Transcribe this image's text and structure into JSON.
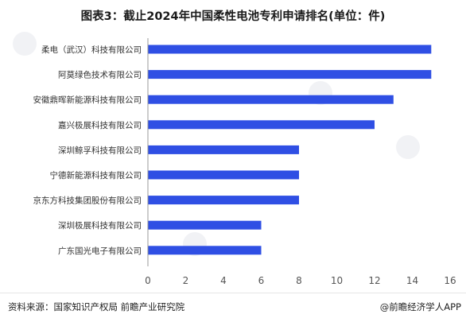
{
  "title": "图表3：截止2024年中国柔性电池专利申请排名(单位：件)",
  "footer": {
    "source": "资料来源：国家知识产权局 前瞻产业研究院",
    "brand": "@前瞻经济学人APP"
  },
  "colors": {
    "bar": "#2F4FE4",
    "axis": "#999999",
    "background": "#ffffff"
  },
  "chart_data": {
    "type": "bar",
    "orientation": "horizontal",
    "title": "图表3：截止2024年中国柔性电池专利申请排名(单位：件)",
    "categories": [
      "柔电（武汉）科技有限公司",
      "阿莫绿色技术有限公司",
      "安徽鼎晖新能源科技有限公司",
      "嘉兴极展科技有限公司",
      "深圳鲸孚科技有限公司",
      "宁德新能源科技有限公司",
      "京东方科技集团股份有限公司",
      "深圳极展科技有限公司",
      "广东国光电子有限公司"
    ],
    "values": [
      15,
      15,
      13,
      12,
      8,
      8,
      8,
      6,
      6
    ],
    "xlim": [
      0,
      16
    ],
    "xticks": [
      0,
      2,
      4,
      6,
      8,
      10,
      12,
      14,
      16
    ],
    "xlabel": "",
    "ylabel": "",
    "grid": false,
    "legend": "none"
  }
}
